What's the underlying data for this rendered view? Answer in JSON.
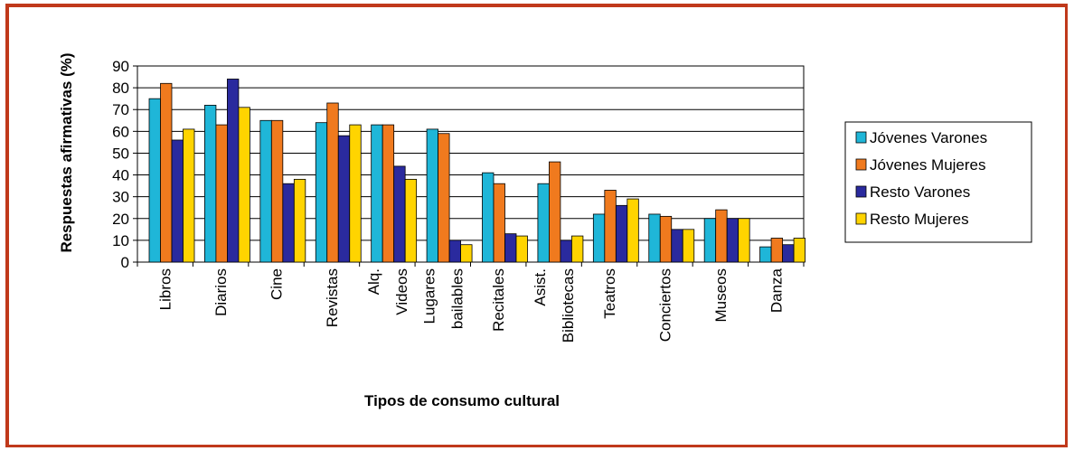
{
  "chart_data": {
    "type": "bar",
    "xlabel": "Tipos de consumo cultural",
    "ylabel": "Respuestas afirmativas (%)",
    "ylim": [
      0,
      90
    ],
    "yticks": [
      0,
      10,
      20,
      30,
      40,
      50,
      60,
      70,
      80,
      90
    ],
    "grid": true,
    "legend_position": "right",
    "categories": [
      [
        "Libros"
      ],
      [
        "Diarios"
      ],
      [
        "Cine"
      ],
      [
        "Revistas"
      ],
      [
        "Alq.",
        "Videos"
      ],
      [
        "Lugares",
        "bailables"
      ],
      [
        "Recitales"
      ],
      [
        "Asist.",
        "Bibliotecas"
      ],
      [
        "Teatros"
      ],
      [
        "Conciertos"
      ],
      [
        "Museos"
      ],
      [
        "Danza"
      ]
    ],
    "series": [
      {
        "name": "Jóvenes Varones",
        "color": "#1fb6d8",
        "values": [
          75,
          72,
          65,
          64,
          63,
          61,
          41,
          36,
          22,
          22,
          20,
          7
        ]
      },
      {
        "name": "Jóvenes Mujeres",
        "color": "#f07a1e",
        "values": [
          82,
          63,
          65,
          73,
          63,
          59,
          36,
          46,
          33,
          21,
          24,
          11
        ]
      },
      {
        "name": "Resto Varones",
        "color": "#2a2a9e",
        "values": [
          56,
          84,
          36,
          58,
          44,
          10,
          13,
          10,
          26,
          15,
          20,
          8
        ]
      },
      {
        "name": "Resto Mujeres",
        "color": "#ffd400",
        "values": [
          61,
          71,
          38,
          63,
          38,
          8,
          12,
          12,
          29,
          15,
          20,
          11
        ]
      }
    ]
  }
}
